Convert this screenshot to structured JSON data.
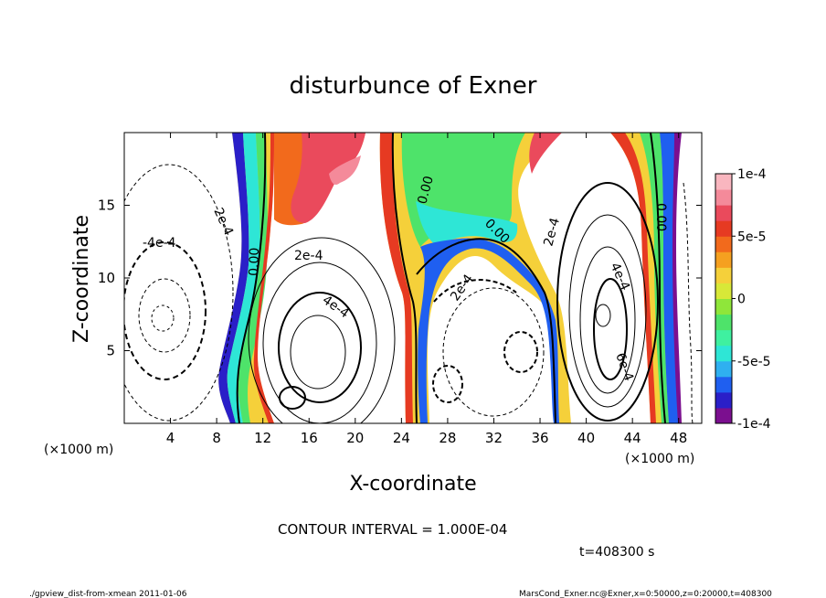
{
  "chart_data": {
    "type": "heatmap",
    "title": "disturbunce of Exner",
    "xlabel": "X-coordinate",
    "ylabel": "Z-coordinate",
    "x_unit_left": "(×1000 m)",
    "x_unit_right": "(×1000 m)",
    "xlim": [
      0,
      50
    ],
    "ylim": [
      0,
      20
    ],
    "x_ticks": [
      4,
      8,
      12,
      16,
      20,
      24,
      28,
      32,
      36,
      40,
      44,
      48
    ],
    "y_ticks": [
      5,
      10,
      15
    ],
    "colorbar": {
      "range": [
        -0.0001,
        0.0001
      ],
      "tick_values": [
        0.0001,
        5e-05,
        0,
        -5e-05,
        -0.0001
      ],
      "tick_labels": [
        "1e-4",
        "5e-5",
        "0",
        "-5e-5",
        "-1e-4"
      ],
      "colors": [
        "#7b0f8f",
        "#2a1fc8",
        "#1f5ff0",
        "#2fb0f0",
        "#2ee6d6",
        "#3ff0a0",
        "#4ee36a",
        "#8fe63a",
        "#d8e838",
        "#f5d03a",
        "#f5a020",
        "#f26a1c",
        "#e63a22",
        "#ea4a5c",
        "#f48a9a",
        "#f9b6bf"
      ]
    },
    "contour_interval": "CONTOUR INTERVAL = 1.000E-04",
    "contour_labels": [
      "2e-4",
      "-4e-4",
      "0.00",
      "2e-4",
      "4e-4",
      "0.00",
      "0.00",
      "2e-4",
      "2e-4",
      "4e-4",
      "6e-4",
      "0.00"
    ],
    "features": [
      {
        "label": "negative (dashed) center",
        "x": 3.5,
        "z": 7.5,
        "value": -0.0006
      },
      {
        "label": "positive center",
        "x": 17,
        "z": 6.5,
        "value": 0.0005
      },
      {
        "label": "negative center",
        "x": 34,
        "z": 5,
        "value": -0.0003
      },
      {
        "label": "positive center",
        "x": 43,
        "z": 8,
        "value": 0.0007
      }
    ],
    "time_label": "t=408300 s"
  },
  "footer": {
    "left": "./gpview_dist-from-xmean  2011-01-06",
    "right": "MarsCond_Exner.nc@Exner,x=0:50000,z=0:20000,t=408300"
  }
}
